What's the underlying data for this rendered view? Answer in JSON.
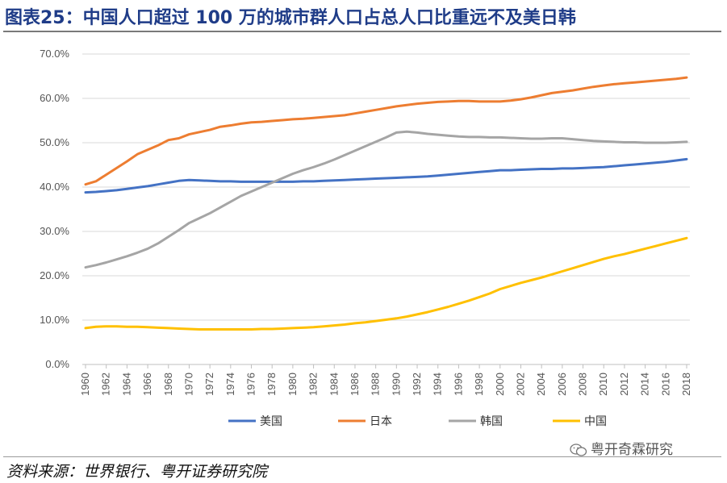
{
  "header": {
    "title": "图表25：中国人口超过 100 万的城市群人口占总人口比重远不及美日韩"
  },
  "footer": {
    "source": "资料来源：世界银行、粤开证券研究院",
    "watermark": "粤开奇霖研究"
  },
  "chart_data": {
    "type": "line",
    "title": "图表25：中国人口超过 100 万的城市群人口占总人口比重远不及美日韩",
    "xlabel": "",
    "ylabel": "",
    "ylim": [
      0,
      70
    ],
    "y_ticks": [
      "0.0%",
      "10.0%",
      "20.0%",
      "30.0%",
      "40.0%",
      "50.0%",
      "60.0%",
      "70.0%"
    ],
    "y_tick_values": [
      0,
      10,
      20,
      30,
      40,
      50,
      60,
      70
    ],
    "x_range": [
      1960,
      2018
    ],
    "x_ticks": [
      "1960",
      "1962",
      "1964",
      "1966",
      "1968",
      "1970",
      "1972",
      "1974",
      "1976",
      "1978",
      "1980",
      "1982",
      "1984",
      "1986",
      "1988",
      "1990",
      "1992",
      "1994",
      "1996",
      "1998",
      "2000",
      "2002",
      "2004",
      "2006",
      "2008",
      "2010",
      "2012",
      "2014",
      "2016",
      "2018"
    ],
    "grid": true,
    "legend_position": "bottom",
    "x": [
      1960,
      1961,
      1962,
      1963,
      1964,
      1965,
      1966,
      1967,
      1968,
      1969,
      1970,
      1971,
      1972,
      1973,
      1974,
      1975,
      1976,
      1977,
      1978,
      1979,
      1980,
      1981,
      1982,
      1983,
      1984,
      1985,
      1986,
      1987,
      1988,
      1989,
      1990,
      1991,
      1992,
      1993,
      1994,
      1995,
      1996,
      1997,
      1998,
      1999,
      2000,
      2001,
      2002,
      2003,
      2004,
      2005,
      2006,
      2007,
      2008,
      2009,
      2010,
      2011,
      2012,
      2013,
      2014,
      2015,
      2016,
      2017,
      2018
    ],
    "series": [
      {
        "name": "美国",
        "color": "#4472c4",
        "values": [
          38.8,
          38.9,
          39.1,
          39.3,
          39.6,
          39.9,
          40.2,
          40.6,
          41.0,
          41.4,
          41.6,
          41.5,
          41.4,
          41.3,
          41.3,
          41.2,
          41.2,
          41.2,
          41.2,
          41.2,
          41.2,
          41.3,
          41.3,
          41.4,
          41.5,
          41.6,
          41.7,
          41.8,
          41.9,
          42.0,
          42.1,
          42.2,
          42.3,
          42.4,
          42.6,
          42.8,
          43.0,
          43.2,
          43.4,
          43.6,
          43.8,
          43.8,
          43.9,
          44.0,
          44.1,
          44.1,
          44.2,
          44.2,
          44.3,
          44.4,
          44.5,
          44.7,
          44.9,
          45.1,
          45.3,
          45.5,
          45.7,
          46.0,
          46.3
        ]
      },
      {
        "name": "日本",
        "color": "#ed7d31",
        "values": [
          40.6,
          41.3,
          42.8,
          44.3,
          45.8,
          47.4,
          48.4,
          49.4,
          50.6,
          51.0,
          51.9,
          52.4,
          52.9,
          53.6,
          53.9,
          54.3,
          54.6,
          54.7,
          54.9,
          55.1,
          55.3,
          55.4,
          55.6,
          55.8,
          56.0,
          56.2,
          56.6,
          57.0,
          57.4,
          57.8,
          58.2,
          58.5,
          58.8,
          59.0,
          59.2,
          59.3,
          59.4,
          59.4,
          59.3,
          59.3,
          59.3,
          59.5,
          59.8,
          60.2,
          60.7,
          61.2,
          61.5,
          61.8,
          62.2,
          62.6,
          62.9,
          63.2,
          63.4,
          63.6,
          63.8,
          64.0,
          64.2,
          64.4,
          64.7
        ]
      },
      {
        "name": "韩国",
        "color": "#a5a5a5",
        "values": [
          21.9,
          22.4,
          23.0,
          23.7,
          24.4,
          25.2,
          26.1,
          27.3,
          28.8,
          30.3,
          31.9,
          33.0,
          34.1,
          35.4,
          36.7,
          38.0,
          39.0,
          40.0,
          41.0,
          42.0,
          43.0,
          43.8,
          44.5,
          45.3,
          46.2,
          47.2,
          48.2,
          49.2,
          50.2,
          51.2,
          52.3,
          52.5,
          52.3,
          52.0,
          51.8,
          51.6,
          51.4,
          51.3,
          51.3,
          51.2,
          51.2,
          51.1,
          51.0,
          50.9,
          50.9,
          51.0,
          51.0,
          50.8,
          50.6,
          50.4,
          50.3,
          50.2,
          50.1,
          50.1,
          50.0,
          50.0,
          50.0,
          50.1,
          50.2
        ]
      },
      {
        "name": "中国",
        "color": "#ffc000",
        "values": [
          8.2,
          8.5,
          8.6,
          8.6,
          8.5,
          8.5,
          8.4,
          8.3,
          8.2,
          8.1,
          8.0,
          7.9,
          7.9,
          7.9,
          7.9,
          7.9,
          7.9,
          8.0,
          8.0,
          8.1,
          8.2,
          8.3,
          8.4,
          8.6,
          8.8,
          9.0,
          9.3,
          9.5,
          9.8,
          10.1,
          10.4,
          10.8,
          11.3,
          11.8,
          12.4,
          13.0,
          13.7,
          14.4,
          15.2,
          16.0,
          17.0,
          17.7,
          18.4,
          19.0,
          19.6,
          20.3,
          21.0,
          21.7,
          22.4,
          23.1,
          23.8,
          24.4,
          24.9,
          25.5,
          26.1,
          26.7,
          27.3,
          27.9,
          28.5
        ]
      }
    ]
  }
}
